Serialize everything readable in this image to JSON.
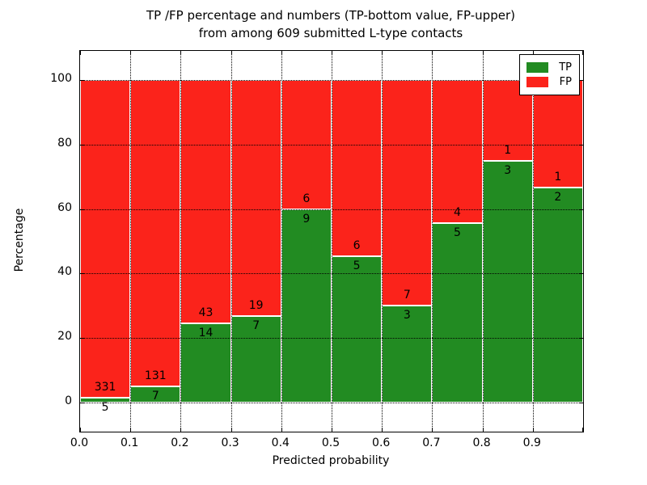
{
  "title": {
    "line1": "TP /FP percentage and numbers (TP-bottom value, FP-upper)",
    "line2": "from among 609 submitted L-type contacts"
  },
  "chart_data": {
    "type": "bar",
    "stacked": true,
    "orientation": "vertical",
    "total_contacts": 609,
    "categories": [
      "0.0-0.1",
      "0.1-0.2",
      "0.2-0.3",
      "0.3-0.4",
      "0.4-0.5",
      "0.5-0.6",
      "0.6-0.7",
      "0.7-0.8",
      "0.8-0.9",
      "0.9-1.0"
    ],
    "series": [
      {
        "name": "TP",
        "counts": [
          5,
          7,
          14,
          7,
          9,
          5,
          3,
          5,
          3,
          2
        ],
        "color": "#228B22"
      },
      {
        "name": "FP",
        "counts": [
          331,
          131,
          43,
          19,
          6,
          6,
          7,
          4,
          1,
          1
        ],
        "color": "#FB231B"
      }
    ],
    "tp_percent": [
      1.49,
      5.07,
      24.56,
      26.92,
      60.0,
      45.45,
      30.0,
      55.56,
      75.0,
      66.67
    ],
    "xlabel": "Predicted probability",
    "ylabel": "Percentage",
    "x_ticks": [
      "0.0",
      "0.1",
      "0.2",
      "0.3",
      "0.4",
      "0.5",
      "0.6",
      "0.7",
      "0.8",
      "0.9"
    ],
    "y_ticks": [
      0,
      20,
      40,
      60,
      80,
      100
    ],
    "xlim": [
      0.0,
      1.0
    ],
    "ylim": [
      -9,
      109
    ],
    "grid": "dotted black, both axes, drawn above bars",
    "legend": {
      "position": "upper right",
      "entries": [
        "TP",
        "FP"
      ]
    }
  }
}
